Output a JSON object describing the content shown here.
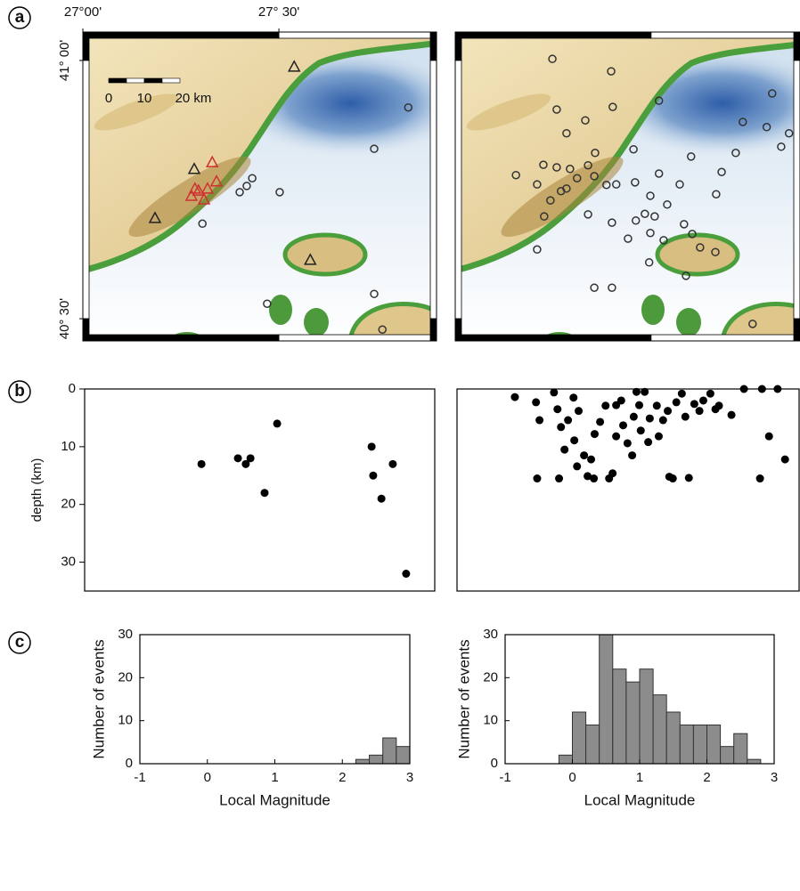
{
  "chart_data": [
    {
      "type": "map",
      "panel": "a",
      "xlim": [
        27,
        27.902
      ],
      "ylim": [
        40.457,
        41.055
      ],
      "xticks": [
        {
          "value": 27,
          "label": "27°00'"
        },
        {
          "value": 27.5,
          "label": "27° 30'"
        }
      ],
      "yticks": [
        {
          "value": 41,
          "label": "41° 00'"
        },
        {
          "value": 40.5,
          "label": "40° 30'"
        }
      ],
      "scale_labels": [
        "0",
        "10",
        "20 km"
      ],
      "series": [
        {
          "marker": "circle",
          "color": "#333333",
          "x": [
            27.83,
            27.743,
            27.432,
            27.418,
            27.4,
            27.502,
            27.305,
            27.47,
            27.743,
            27.764
          ],
          "y": [
            40.909,
            40.829,
            40.772,
            40.757,
            40.745,
            40.745,
            40.684,
            40.529,
            40.548,
            40.479
          ]
        },
        {
          "marker": "triangle",
          "color": "#222222",
          "x": [
            27.539,
            27.284,
            27.184,
            27.58
          ],
          "y": [
            40.988,
            40.79,
            40.695,
            40.614
          ]
        },
        {
          "marker": "triangle",
          "color": "#d03030",
          "x": [
            27.33,
            27.341,
            27.318,
            27.277,
            27.295,
            27.309,
            27.286
          ],
          "y": [
            40.803,
            40.766,
            40.752,
            40.738,
            40.748,
            40.731,
            40.752
          ]
        }
      ]
    },
    {
      "type": "map",
      "xlim": [
        27,
        27.88
      ],
      "ylim": [
        40.457,
        41.055
      ],
      "series": [
        {
          "marker": "circle",
          "color": "#333333",
          "x": [
            27.248,
            27.398,
            27.402,
            27.259,
            27.332,
            27.52,
            27.809,
            27.734,
            27.795,
            27.852,
            27.832,
            27.716,
            27.602,
            27.455,
            27.357,
            27.284,
            27.225,
            27.155,
            27.209,
            27.259,
            27.293,
            27.311,
            27.339,
            27.355,
            27.27,
            27.243,
            27.284,
            27.227,
            27.339,
            27.386,
            27.411,
            27.459,
            27.52,
            27.573,
            27.498,
            27.541,
            27.484,
            27.461,
            27.441,
            27.498,
            27.532,
            27.584,
            27.605,
            27.625,
            27.664,
            27.495,
            27.589,
            27.355,
            27.4,
            27.209,
            27.68,
            27.666,
            27.759,
            27.509,
            27.4
          ],
          "y": [
            41.003,
            40.979,
            40.91,
            40.905,
            40.884,
            40.922,
            40.936,
            40.881,
            40.871,
            40.859,
            40.833,
            40.821,
            40.814,
            40.828,
            40.821,
            40.859,
            40.798,
            40.778,
            40.76,
            40.793,
            40.79,
            40.772,
            40.797,
            40.776,
            40.747,
            40.729,
            40.752,
            40.698,
            40.702,
            40.759,
            40.76,
            40.764,
            40.781,
            40.76,
            40.738,
            40.721,
            40.703,
            40.69,
            40.655,
            40.666,
            40.652,
            40.683,
            40.664,
            40.638,
            40.629,
            40.609,
            40.583,
            40.56,
            40.56,
            40.634,
            40.784,
            40.741,
            40.49,
            40.698,
            40.686
          ]
        }
      ]
    },
    {
      "type": "scatter",
      "panel": "b",
      "xlim": [
        27,
        27.893
      ],
      "ylim": [
        0,
        35
      ],
      "invert_y": true,
      "yticks": [
        0,
        10,
        20,
        30
      ],
      "ylabel": "depth (km)",
      "color": "#000000",
      "x": [
        27.298,
        27.391,
        27.411,
        27.423,
        27.491,
        27.459,
        27.732,
        27.736,
        27.786,
        27.757,
        27.82
      ],
      "y": [
        13,
        12,
        13,
        12,
        6,
        18,
        10,
        15,
        13,
        19,
        32
      ]
    },
    {
      "type": "scatter",
      "xlim": [
        27,
        27.875
      ],
      "ylim": [
        0,
        35
      ],
      "invert_y": true,
      "color": "#000000",
      "x": [
        27.148,
        27.202,
        27.211,
        27.205,
        27.261,
        27.248,
        27.257,
        27.266,
        27.275,
        27.298,
        27.3,
        27.311,
        27.325,
        27.334,
        27.343,
        27.35,
        27.366,
        27.38,
        27.389,
        27.398,
        27.407,
        27.42,
        27.425,
        27.436,
        27.448,
        27.452,
        27.466,
        27.47,
        27.48,
        27.493,
        27.511,
        27.516,
        27.527,
        27.539,
        27.543,
        27.552,
        27.561,
        27.575,
        27.584,
        27.593,
        27.607,
        27.62,
        27.63,
        27.648,
        27.661,
        27.67,
        27.702,
        27.734,
        27.78,
        27.798,
        27.82,
        27.839,
        27.775,
        27.284,
        27.307,
        27.459,
        27.489,
        27.407,
        27.352
      ],
      "y": [
        1.4,
        2.3,
        5.4,
        15.5,
        15.5,
        0.6,
        3.5,
        6.6,
        10.5,
        1.5,
        8.9,
        3.8,
        11.5,
        15.1,
        12.2,
        15.5,
        5.7,
        2.9,
        15.5,
        14.6,
        2.8,
        2,
        6.3,
        9.4,
        11.5,
        4.8,
        2.8,
        7.2,
        0.5,
        5.1,
        2.9,
        8.2,
        5.4,
        3.8,
        15.2,
        15.5,
        2.3,
        0.8,
        4.8,
        15.4,
        2.6,
        3.8,
        2,
        0.8,
        3.5,
        2.9,
        4.5,
        0,
        0,
        8.2,
        0,
        12.2,
        15.5,
        5.4,
        13.4,
        0.5,
        9.2,
        8.2,
        7.8
      ]
    },
    {
      "type": "histogram",
      "panel": "c",
      "bins": [
        2.2,
        2.4,
        2.6,
        2.8,
        3.0
      ],
      "counts": [
        1,
        2,
        6,
        4
      ],
      "xlim": [
        -1,
        3
      ],
      "ylim": [
        0,
        30
      ],
      "xticks": [
        -1,
        0,
        1,
        2,
        3
      ],
      "yticks": [
        0,
        10,
        20,
        30
      ],
      "xlabel": "Local Magnitude",
      "ylabel": "Number of events",
      "color": "#8c8c8c"
    },
    {
      "type": "histogram",
      "bins": [
        -0.2,
        0,
        0.2,
        0.4,
        0.6,
        0.8,
        1.0,
        1.2,
        1.4,
        1.6,
        1.8,
        2.0,
        2.2,
        2.4,
        2.6,
        2.8
      ],
      "counts": [
        2,
        12,
        9,
        30,
        22,
        19,
        22,
        16,
        12,
        9,
        9,
        9,
        4,
        7,
        1
      ],
      "xlim": [
        -1,
        3
      ],
      "ylim": [
        0,
        30
      ],
      "xticks": [
        -1,
        0,
        1,
        2,
        3
      ],
      "yticks": [
        0,
        10,
        20,
        30
      ],
      "xlabel": "Local Magnitude",
      "ylabel": "Number of events",
      "color": "#8c8c8c"
    }
  ]
}
